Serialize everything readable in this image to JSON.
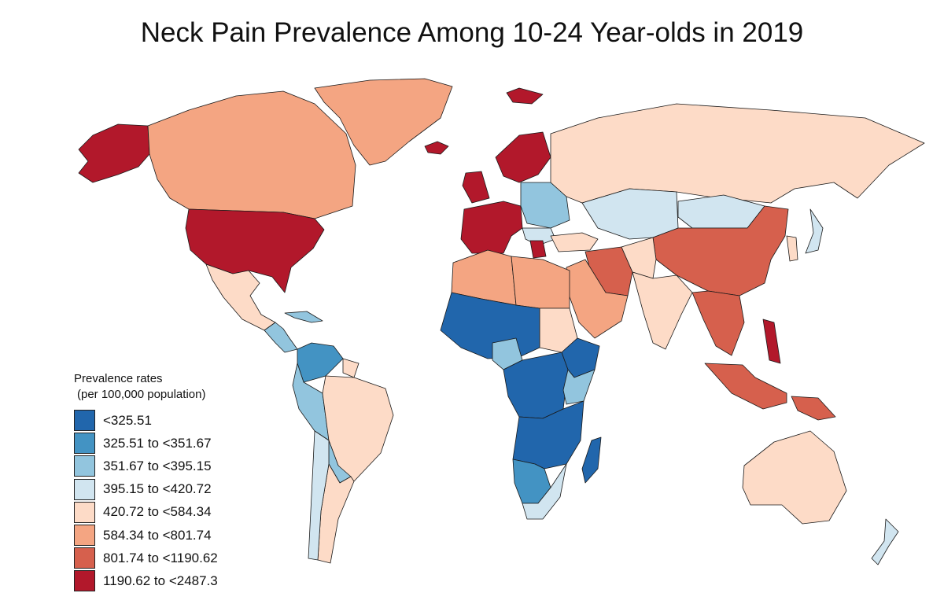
{
  "title": "Neck Pain Prevalence Among 10-24 Year-olds in 2019",
  "legend": {
    "title": "Prevalence rates",
    "subtitle": "(per 100,000 population)",
    "classes": [
      {
        "label": "<325.51",
        "color": "#2166ac"
      },
      {
        "label": "325.51 to <351.67",
        "color": "#4393c3"
      },
      {
        "label": "351.67 to <395.15",
        "color": "#92c5de"
      },
      {
        "label": "395.15 to <420.72",
        "color": "#d1e5f0"
      },
      {
        "label": "420.72 to <584.34",
        "color": "#fddbc7"
      },
      {
        "label": "584.34 to <801.74",
        "color": "#f4a582"
      },
      {
        "label": "801.74 to <1190.62",
        "color": "#d6604d"
      },
      {
        "label": "1190.62 to <2487.3",
        "color": "#b2182b"
      }
    ]
  },
  "regions": [
    {
      "name": "alaska",
      "class": 7
    },
    {
      "name": "canada",
      "class": 5
    },
    {
      "name": "greenland",
      "class": 5
    },
    {
      "name": "iceland",
      "class": 7
    },
    {
      "name": "svalbard",
      "class": 7
    },
    {
      "name": "usa",
      "class": 7
    },
    {
      "name": "mexico",
      "class": 4
    },
    {
      "name": "central-america",
      "class": 2
    },
    {
      "name": "caribbean",
      "class": 2
    },
    {
      "name": "venezuela-colombia",
      "class": 1
    },
    {
      "name": "guianas",
      "class": 4
    },
    {
      "name": "andes-west",
      "class": 2
    },
    {
      "name": "brazil",
      "class": 4
    },
    {
      "name": "bolivia-paraguay",
      "class": 2
    },
    {
      "name": "argentina",
      "class": 4
    },
    {
      "name": "chile",
      "class": 3
    },
    {
      "name": "western-europe",
      "class": 7
    },
    {
      "name": "uk-ireland",
      "class": 7
    },
    {
      "name": "scandinavia",
      "class": 7
    },
    {
      "name": "eastern-europe",
      "class": 2
    },
    {
      "name": "balkans",
      "class": 3
    },
    {
      "name": "greece",
      "class": 7
    },
    {
      "name": "russia",
      "class": 4
    },
    {
      "name": "central-asia",
      "class": 3
    },
    {
      "name": "mongolia",
      "class": 3
    },
    {
      "name": "china",
      "class": 6
    },
    {
      "name": "japan",
      "class": 3
    },
    {
      "name": "korea",
      "class": 4
    },
    {
      "name": "turkey",
      "class": 4
    },
    {
      "name": "iran",
      "class": 6
    },
    {
      "name": "afghanistan-pakistan",
      "class": 4
    },
    {
      "name": "india",
      "class": 4
    },
    {
      "name": "southeast-asia",
      "class": 6
    },
    {
      "name": "philippines",
      "class": 7
    },
    {
      "name": "indonesia",
      "class": 6
    },
    {
      "name": "new-guinea",
      "class": 6
    },
    {
      "name": "australia",
      "class": 4
    },
    {
      "name": "new-zealand",
      "class": 3
    },
    {
      "name": "arabia",
      "class": 5
    },
    {
      "name": "north-africa-west",
      "class": 5
    },
    {
      "name": "libya-egypt",
      "class": 5
    },
    {
      "name": "sudan",
      "class": 4
    },
    {
      "name": "west-africa",
      "class": 0
    },
    {
      "name": "nigeria",
      "class": 2
    },
    {
      "name": "central-africa",
      "class": 0
    },
    {
      "name": "ethiopia",
      "class": 0
    },
    {
      "name": "horn-kenya",
      "class": 2
    },
    {
      "name": "southern-central-africa",
      "class": 0
    },
    {
      "name": "namibia-botswana",
      "class": 1
    },
    {
      "name": "south-africa",
      "class": 3
    },
    {
      "name": "madagascar",
      "class": 0
    }
  ]
}
